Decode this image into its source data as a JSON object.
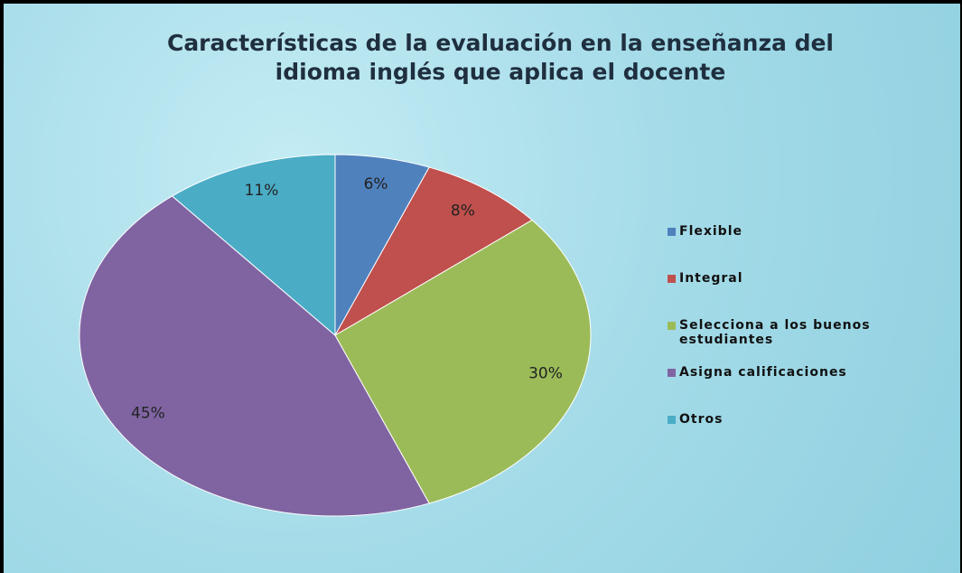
{
  "chart_data": {
    "type": "pie",
    "title": "Características de la evaluación en la enseñanza del idioma inglés que aplica el docente",
    "categories": [
      "Flexible",
      "Integral",
      "Selecciona a los buenos estudiantes",
      "Asigna calificaciones",
      "Otros"
    ],
    "values": [
      6,
      8,
      30,
      45,
      11
    ],
    "value_labels": [
      "6%",
      "8%",
      "30%",
      "45%",
      "11%"
    ],
    "colors": [
      "#4f81bd",
      "#c0504d",
      "#9bbb59",
      "#8064a2",
      "#4bacc6"
    ],
    "legend": "right"
  }
}
